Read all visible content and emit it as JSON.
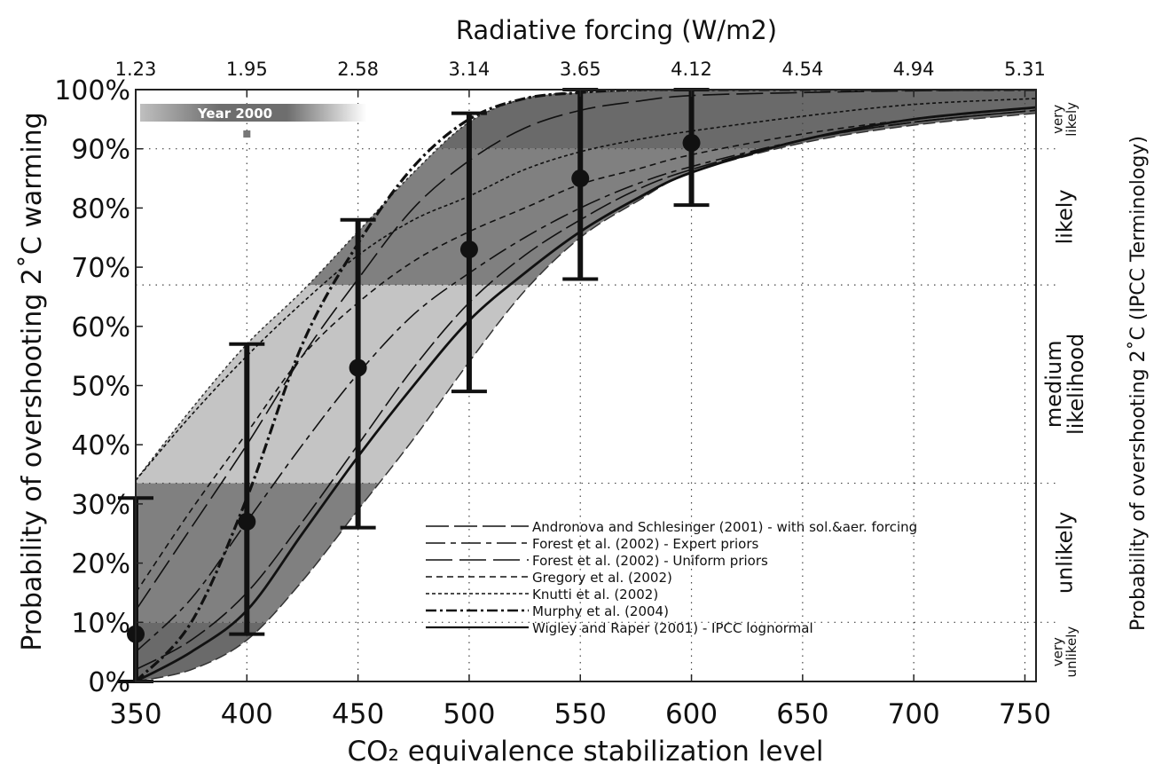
{
  "chart_data": {
    "type": "line",
    "title": "",
    "xlabel": "CO₂ equivalence stabilization level",
    "ylabel": "Probability of overshooting 2˚C warming",
    "top_axis_label": "Radiative forcing (W/m2)",
    "right_axis_label": "Probability of overshooting 2˚C (IPCC Terminology)",
    "xlim": [
      350,
      755
    ],
    "ylim": [
      0,
      100
    ],
    "x_ticks": [
      350,
      400,
      450,
      500,
      550,
      600,
      650,
      700,
      750
    ],
    "y_ticks": [
      0,
      10,
      20,
      30,
      40,
      50,
      60,
      70,
      80,
      90,
      100
    ],
    "y_tick_suffix": "%",
    "top_ticks": [
      {
        "x": 350,
        "label": "1.23"
      },
      {
        "x": 400,
        "label": "1.95"
      },
      {
        "x": 450,
        "label": "2.58"
      },
      {
        "x": 500,
        "label": "3.14"
      },
      {
        "x": 550,
        "label": "3.65"
      },
      {
        "x": 600,
        "label": "4.12"
      },
      {
        "x": 650,
        "label": "4.54"
      },
      {
        "x": 700,
        "label": "4.94"
      },
      {
        "x": 750,
        "label": "5.31"
      }
    ],
    "grid": true,
    "likelihood_bands": [
      {
        "label": [
          "very",
          "unlikely"
        ],
        "from": 0,
        "to": 10
      },
      {
        "label": [
          "unlikely"
        ],
        "from": 10,
        "to": 33.5
      },
      {
        "label": [
          "medium",
          "likelihood"
        ],
        "from": 33.5,
        "to": 67
      },
      {
        "label": [
          "likely"
        ],
        "from": 67,
        "to": 90
      },
      {
        "label": [
          "very",
          "likely"
        ],
        "from": 90,
        "to": 100
      }
    ],
    "year_marker": {
      "label": "Year 2000",
      "x": 400
    },
    "envelope": {
      "x": [
        350,
        375,
        400,
        425,
        450,
        475,
        500,
        525,
        550,
        575,
        600,
        650,
        700,
        755
      ],
      "upper": [
        34,
        46,
        57,
        66,
        76,
        86,
        94.5,
        98.5,
        99.5,
        99.8,
        99.9,
        100,
        100,
        100
      ],
      "lower": [
        0,
        2,
        7,
        17,
        29,
        41,
        54,
        66,
        75,
        81,
        86,
        91,
        94,
        96
      ]
    },
    "series": [
      {
        "name": "Andronova and Schlesinger (2001) - with sol.&aer. forcing",
        "dash": "26 6",
        "x": [
          350,
          375,
          400,
          425,
          450,
          475,
          500,
          525,
          550,
          575,
          600,
          650,
          700,
          755
        ],
        "y": [
          2,
          7,
          15,
          27,
          40,
          53,
          64,
          72,
          78,
          83,
          86.5,
          91.5,
          94.5,
          96.5
        ]
      },
      {
        "name": "Forest et al. (2002) - Expert priors",
        "dash": "22 6 6 6",
        "x": [
          350,
          375,
          400,
          425,
          450,
          475,
          500,
          525,
          550,
          575,
          600,
          650,
          700,
          755
        ],
        "y": [
          5,
          14,
          27,
          40,
          52,
          62,
          69,
          75,
          80,
          84,
          87,
          91.5,
          94.5,
          96.5
        ]
      },
      {
        "name": "Forest et al. (2002) - Uniform priors",
        "dash": "30 8",
        "x": [
          350,
          375,
          400,
          425,
          450,
          475,
          500,
          525,
          550,
          575,
          600,
          650,
          700,
          755
        ],
        "y": [
          12,
          26,
          40,
          55,
          68,
          80,
          88,
          93.5,
          96.5,
          98,
          99,
          99.5,
          99.8,
          100
        ]
      },
      {
        "name": "Gregory et al. (2002)",
        "dash": "7 5",
        "x": [
          350,
          375,
          400,
          425,
          450,
          475,
          500,
          525,
          550,
          575,
          600,
          650,
          700,
          755
        ],
        "y": [
          15,
          29,
          42,
          55,
          64,
          71,
          76,
          80,
          84,
          86.5,
          89,
          92.5,
          95,
          97
        ]
      },
      {
        "name": "Knutti et al. (2002)",
        "dash": "4 3",
        "x": [
          350,
          375,
          400,
          425,
          450,
          475,
          500,
          525,
          550,
          575,
          600,
          650,
          700,
          755
        ],
        "y": [
          34,
          45,
          55,
          64,
          72,
          78,
          82,
          86.5,
          89.5,
          91.5,
          93,
          95.5,
          97.5,
          98.5
        ]
      },
      {
        "name": "Murphy et al. (2004)",
        "dash": "12 4 3 4",
        "width": 3.2,
        "x": [
          350,
          375,
          400,
          425,
          450,
          475,
          500,
          525,
          550,
          575,
          600,
          650,
          700,
          755
        ],
        "y": [
          0,
          10,
          31,
          57,
          74,
          87,
          95,
          98.5,
          99.5,
          100,
          100,
          100,
          100,
          100
        ]
      },
      {
        "name": "Wigley and Raper (2001) - IPCC lognormal",
        "dash": "",
        "width": 2.8,
        "x": [
          350,
          375,
          400,
          425,
          450,
          475,
          500,
          525,
          550,
          575,
          600,
          650,
          700,
          755
        ],
        "y": [
          0,
          5,
          12,
          25,
          38,
          50,
          61,
          69,
          76,
          81.5,
          86,
          91.5,
          95,
          97
        ]
      }
    ],
    "error_bars": [
      {
        "x": 350,
        "y": 8,
        "low": 0,
        "high": 31
      },
      {
        "x": 400,
        "y": 27,
        "low": 8,
        "high": 57
      },
      {
        "x": 450,
        "y": 53,
        "low": 26,
        "high": 78
      },
      {
        "x": 500,
        "y": 73,
        "low": 49,
        "high": 96
      },
      {
        "x": 550,
        "y": 85,
        "low": 68,
        "high": 100
      },
      {
        "x": 600,
        "y": 91,
        "low": 80.5,
        "high": 100
      }
    ]
  }
}
